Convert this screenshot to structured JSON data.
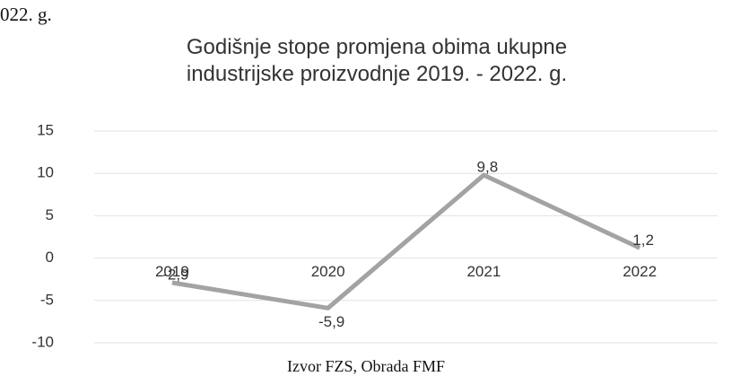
{
  "page_fragment": "022. g.",
  "source": "Izvor FZS, Obrada FMF",
  "chart_data": {
    "type": "line",
    "title": "Godišnje stope promjena obima ukupne industrijske proizvodnje 2019. - 2022. g.",
    "categories": [
      "2019",
      "2020",
      "2021",
      "2022"
    ],
    "values": [
      -2.9,
      -5.9,
      9.8,
      1.2
    ],
    "value_labels": [
      "-2,9",
      "-5,9",
      "9,8",
      "1,2"
    ],
    "color": "#a3a3a3",
    "ylim": [
      -10,
      15
    ],
    "yticks": [
      -10,
      -5,
      0,
      5,
      10,
      15
    ],
    "grid": true
  }
}
